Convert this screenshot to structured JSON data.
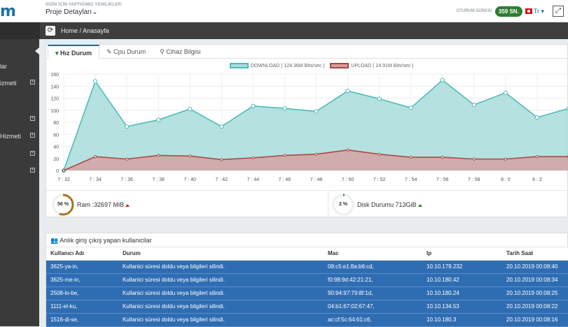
{
  "header": {
    "logo": "m",
    "caption": "SİZİN İÇİN YAPTIĞIMIZ YENİLİKLER:",
    "project": "Proje Detayları",
    "session_label": "OTURUM SÜRESİ",
    "session_value": "359 SN.",
    "language": "Tr"
  },
  "sidebar": {
    "items": [
      {
        "label": "lar",
        "has_plus": false
      },
      {
        "label": "izmeti",
        "has_plus": true
      },
      {
        "label": "",
        "has_plus": true
      },
      {
        "label": "Hizmeti",
        "has_plus": true
      },
      {
        "label": "",
        "has_plus": true
      },
      {
        "label": "",
        "has_plus": true
      }
    ]
  },
  "breadcrumb": {
    "home": "Home",
    "separator": "/",
    "current": "Anasayfa"
  },
  "tabs": [
    {
      "label": "Hız Durum",
      "active": true
    },
    {
      "label": "Cpu Durum",
      "active": false
    },
    {
      "label": "Cihaz Bilgisi",
      "active": false
    }
  ],
  "colors": {
    "download_fill": "#a8dcdc",
    "download_line": "#4fbdb7",
    "upload_fill": "#d99a9a",
    "upload_line": "#a94a44",
    "accent": "#1d6fa5",
    "row_blue": "#2f6db3"
  },
  "chart_data": {
    "type": "area",
    "x": [
      "7 : 32",
      "7 : 34",
      "7 : 36",
      "7 : 38",
      "7 : 40",
      "7 : 42",
      "7 : 44",
      "7 : 46",
      "7 : 48",
      "7 : 50",
      "7 : 52",
      "7 : 54",
      "7 : 56",
      "7 : 58",
      "8 : 0",
      "8 : 2",
      ""
    ],
    "ylim": [
      0,
      160
    ],
    "yticks": [
      0,
      20,
      40,
      60,
      80,
      100,
      120,
      140,
      160
    ],
    "series": [
      {
        "name": "DOWNLOAD ( 124.36M Bits/sec )",
        "values": [
          0,
          148,
          73,
          84,
          102,
          73,
          107,
          103,
          98,
          132,
          119,
          104,
          150,
          109,
          129,
          88,
          103
        ]
      },
      {
        "name": "UPLOAD ( 24.91M Bits/sec )",
        "values": [
          0,
          23,
          19,
          25,
          24,
          18,
          21,
          25,
          27,
          34,
          27,
          22,
          22,
          19,
          19,
          23,
          23
        ]
      }
    ],
    "grid": true,
    "legend": "top-center"
  },
  "stats": {
    "ram_percent": "56 %",
    "ram_fraction": 0.56,
    "ram_label": "Ram :32697 MiB",
    "disk_percent": "2 %",
    "disk_fraction": 0.02,
    "disk_label": "Disk Durumu 713GiB"
  },
  "users_panel": {
    "title": "Anlık giriş çıkış yapan kullanicilar",
    "columns": [
      "Kullanıcı Adı",
      "Durum",
      "Mac",
      "Ip",
      "Tarih Saat"
    ],
    "rows": [
      [
        "3625-ya-in,",
        "Kullanici süresi doldu veya bilgileri silindi.",
        "08:c5:e1:8a:b6:cd,",
        "10.10.179.232",
        "20.10.2019 00:08:40"
      ],
      [
        "3625-me-in,",
        "Kullanici süresi doldu veya bilgileri silindi.",
        "f0:98:9d:42:21:21,",
        "10.10.180.42",
        "20.10.2019 00:08:34"
      ],
      [
        "2508-lo-be,",
        "Kullanici süresi doldu veya bilgileri silindi.",
        "90:94:97:79:8f:1d,",
        "10.10.180.24",
        "20.10.2019 00:08:25"
      ],
      [
        "1111-el-ku,",
        "Kullanici süresi doldu veya bilgileri silindi.",
        "04:b1:67:02:67:47,",
        "10.10.134.53",
        "20.10.2019 00:08:22"
      ],
      [
        "1516-di-se,",
        "Kullanici süresi doldu veya bilgileri silindi.",
        "ac:cf:5c:64:61:c6,",
        "10.10.180.3",
        "20.10.2019 00:08:16"
      ]
    ]
  }
}
